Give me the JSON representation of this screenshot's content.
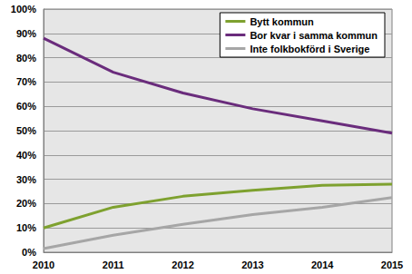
{
  "chart_data": {
    "type": "line",
    "categories": [
      "2010",
      "2011",
      "2012",
      "2013",
      "2014",
      "2015"
    ],
    "series": [
      {
        "name": "Bytt kommun",
        "color": "#7ea12f",
        "values": [
          10,
          18.5,
          23,
          25.5,
          27.5,
          28
        ]
      },
      {
        "name": "Bor kvar i samma kommun",
        "color": "#6a2c7c",
        "values": [
          88,
          74,
          65.5,
          59,
          54,
          49
        ]
      },
      {
        "name": "Inte folkbokförd i Sverige",
        "color": "#a6a6a6",
        "values": [
          1.5,
          7,
          11.5,
          15.5,
          18.5,
          22.5
        ]
      }
    ],
    "ylim": [
      0,
      100
    ],
    "yticks": [
      {
        "value": 0,
        "label": "0%"
      },
      {
        "value": 10,
        "label": "10%"
      },
      {
        "value": 20,
        "label": "20%"
      },
      {
        "value": 30,
        "label": "30%"
      },
      {
        "value": 40,
        "label": "40%"
      },
      {
        "value": 50,
        "label": "50%"
      },
      {
        "value": 60,
        "label": "60%"
      },
      {
        "value": 70,
        "label": "70%"
      },
      {
        "value": 80,
        "label": "80%"
      },
      {
        "value": 90,
        "label": "90%"
      },
      {
        "value": 100,
        "label": "100%"
      }
    ],
    "grid": true,
    "legend": "top-right"
  }
}
